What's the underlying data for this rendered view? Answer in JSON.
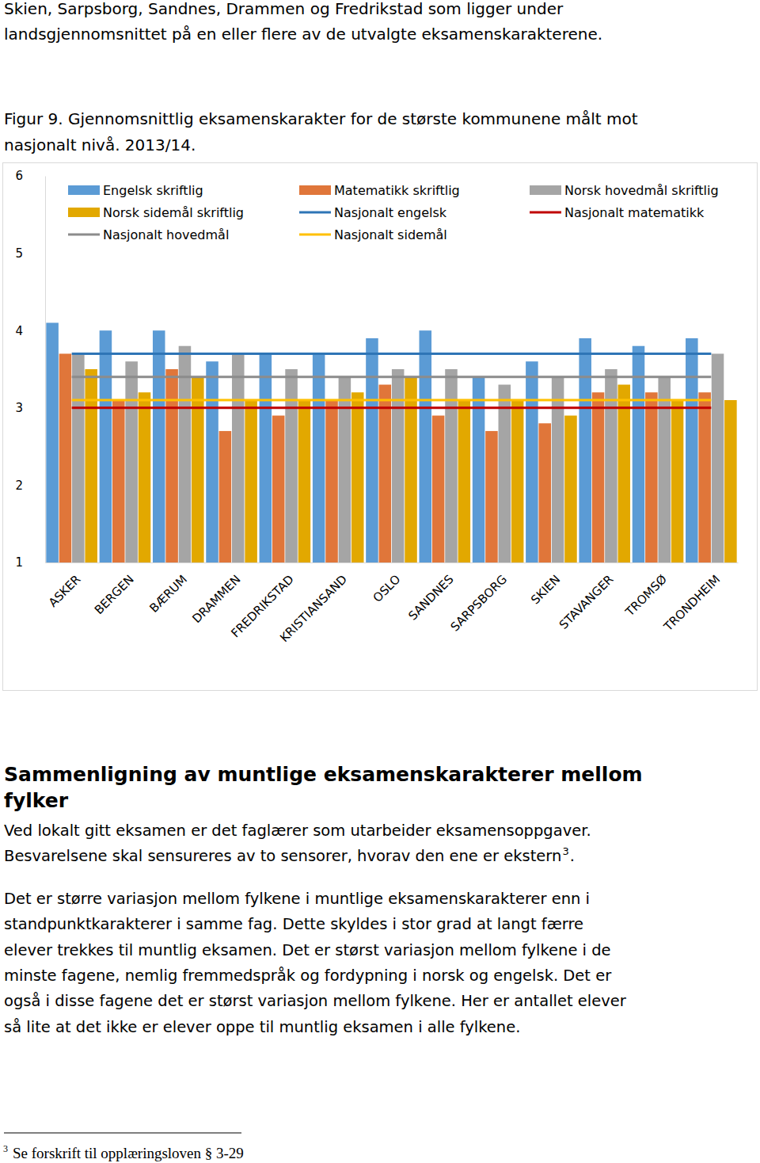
{
  "page": {
    "intro": [
      "Skien, Sarpsborg, Sandnes, Drammen og Fredrikstad som ligger under",
      "landsgjennomsnittet på en eller flere av de utvalgte eksamenskarakterene."
    ],
    "caption": [
      "Figur 9. Gjennomsnittlig eksamenskarakter for de største kommunene målt mot",
      "nasjonalt nivå. 2013/14."
    ],
    "heading": [
      "Sammenligning av muntlige eksamenskarakterer mellom",
      "fylker"
    ],
    "paragraph1": {
      "lines": [
        "Ved lokalt gitt eksamen er det faglærer som utarbeider eksamensoppgaver.",
        "Besvarelsene skal sensureres av to sensorer, hvorav den ene er ekstern"
      ],
      "footnote_ref": "3",
      "after_ref": "."
    },
    "paragraph2": [
      "Det er større variasjon mellom fylkene i muntlige eksamenskarakterer enn i",
      "standpunktkarakterer i samme fag. Dette skyldes i stor grad at langt færre",
      "elever trekkes til muntlig eksamen. Det er størst variasjon mellom fylkene i de",
      "minste fagene, nemlig fremmedspråk og fordypning i norsk og engelsk. Det er",
      "også i disse fagene det er størst variasjon mellom fylkene. Her er antallet elever",
      "så lite at det ikke er elever oppe til muntlig eksamen i alle fylkene."
    ],
    "footnote": {
      "number": "3",
      "text": "Se forskrift til opplæringsloven § 3-29"
    }
  },
  "chart_data": {
    "type": "bar",
    "categories": [
      "ASKER",
      "BERGEN",
      "BÆRUM",
      "DRAMMEN",
      "FREDRIKSTAD",
      "KRISTIANSAND",
      "OSLO",
      "SANDNES",
      "SARPSBORG",
      "SKIEN",
      "STAVANGER",
      "TROMSØ",
      "TRONDHEIM"
    ],
    "series": [
      {
        "name": "Engelsk skriftlig",
        "color": "#5b9bd5",
        "values": [
          4.1,
          4.0,
          4.0,
          3.6,
          3.7,
          3.7,
          3.9,
          4.0,
          3.4,
          3.6,
          3.9,
          3.8,
          3.9
        ]
      },
      {
        "name": "Matematikk skriftlig",
        "color": "#e0763a",
        "values": [
          3.7,
          3.1,
          3.5,
          2.7,
          2.9,
          3.1,
          3.3,
          2.9,
          2.7,
          2.8,
          3.2,
          3.2,
          3.2
        ]
      },
      {
        "name": "Norsk hovedmål skriftlig",
        "color": "#a5a5a5",
        "values": [
          3.7,
          3.6,
          3.8,
          3.7,
          3.5,
          3.4,
          3.5,
          3.5,
          3.3,
          3.4,
          3.5,
          3.4,
          3.7
        ]
      },
      {
        "name": "Norsk sidemål skriftlig",
        "color": "#e2a800",
        "values": [
          3.5,
          3.2,
          3.4,
          3.1,
          3.1,
          3.2,
          3.4,
          3.1,
          3.1,
          2.9,
          3.3,
          3.1,
          3.1
        ]
      },
      {
        "name": "Nasjonalt engelsk",
        "color": "#2e75b6",
        "type": "line",
        "values": [
          3.7,
          3.7,
          3.7,
          3.7,
          3.7,
          3.7,
          3.7,
          3.7,
          3.7,
          3.7,
          3.7,
          3.7,
          3.7
        ]
      },
      {
        "name": "Nasjonalt matematikk",
        "color": "#c00000",
        "type": "line",
        "values": [
          3.0,
          3.0,
          3.0,
          3.0,
          3.0,
          3.0,
          3.0,
          3.0,
          3.0,
          3.0,
          3.0,
          3.0,
          3.0
        ]
      },
      {
        "name": "Nasjonalt hovedmål",
        "color": "#8c8c8c",
        "type": "line",
        "values": [
          3.4,
          3.4,
          3.4,
          3.4,
          3.4,
          3.4,
          3.4,
          3.4,
          3.4,
          3.4,
          3.4,
          3.4,
          3.4
        ]
      },
      {
        "name": "Nasjonalt sidemål",
        "color": "#ffc000",
        "type": "line",
        "values": [
          3.1,
          3.1,
          3.1,
          3.1,
          3.1,
          3.1,
          3.1,
          3.1,
          3.1,
          3.1,
          3.1,
          3.1,
          3.1
        ]
      }
    ],
    "ylim": [
      1,
      6
    ],
    "yticks": [
      1,
      2,
      3,
      4,
      5,
      6
    ],
    "grid": false,
    "legend": "top"
  }
}
